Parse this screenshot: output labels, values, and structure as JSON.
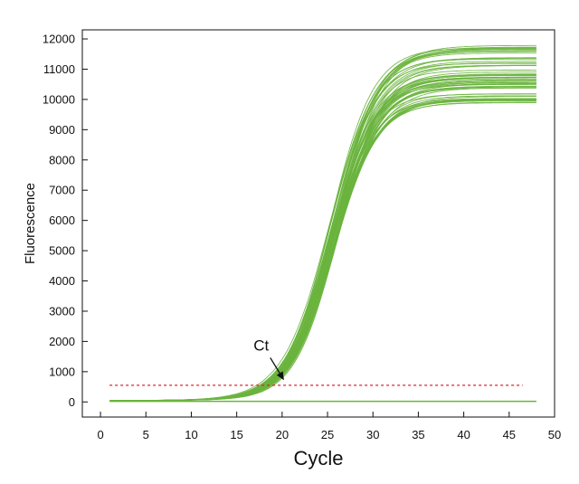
{
  "chart_data": {
    "type": "line",
    "title": "",
    "xlabel": "Cycle",
    "ylabel": "Fluorescence",
    "xlim": [
      -2,
      50
    ],
    "ylim": [
      -500,
      12300
    ],
    "x_ticks": [
      0,
      5,
      10,
      15,
      20,
      25,
      30,
      35,
      40,
      45,
      50
    ],
    "y_ticks": [
      0,
      1000,
      2000,
      3000,
      4000,
      5000,
      6000,
      7000,
      8000,
      9000,
      10000,
      11000,
      12000
    ],
    "grid": false,
    "legend": "none",
    "colors": {
      "curves": "#6ab43e",
      "threshold": "#d9262b",
      "axes": "#111111"
    },
    "threshold": {
      "y": 550,
      "x_start": 1,
      "x_end": 46.5
    },
    "annotation": {
      "text": "Ct",
      "text_x": 17.7,
      "text_y": 1700,
      "arrow_to_x": 20.2,
      "arrow_to_y": 720
    },
    "x_range": [
      1,
      48
    ],
    "curve_family": {
      "count": 60,
      "model": "sigmoid",
      "midpoint_cycle_range": [
        25.2,
        26.0
      ],
      "plateau_range": [
        9800,
        11800
      ],
      "slope_range": [
        2.3,
        2.6
      ],
      "baseline": 50
    },
    "flat_series": {
      "name": "",
      "x": [
        1,
        48
      ],
      "y": [
        20,
        20
      ]
    }
  }
}
